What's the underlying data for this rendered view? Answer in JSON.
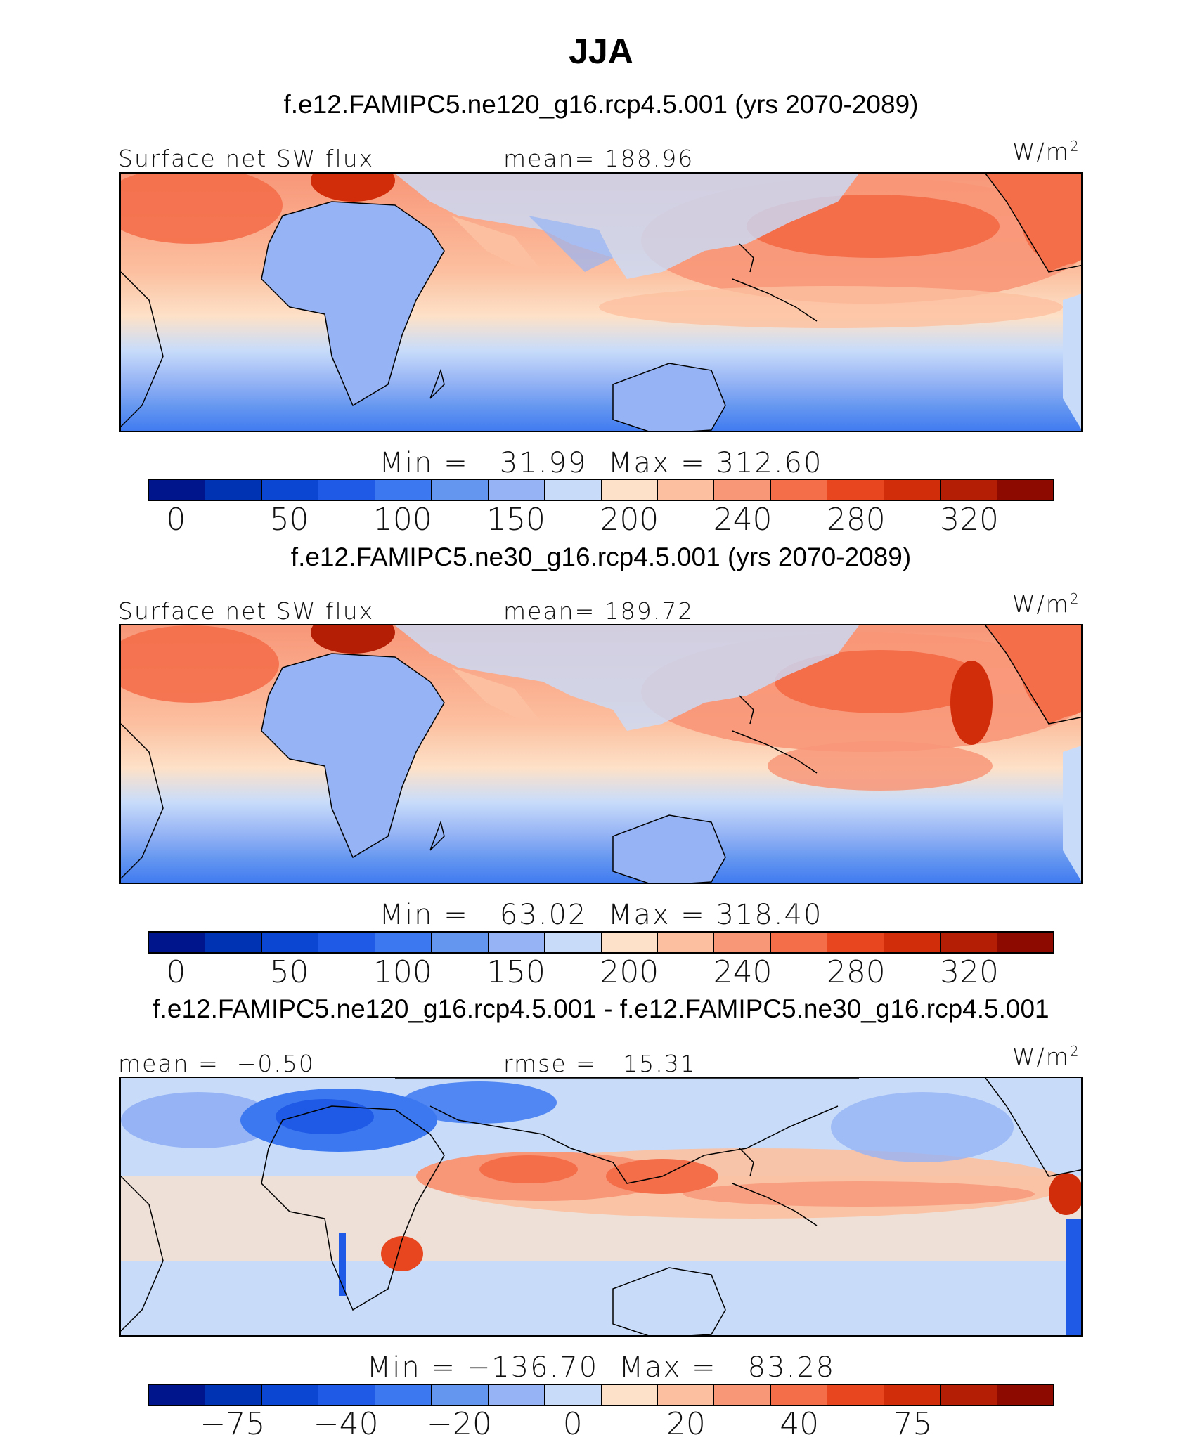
{
  "season": "JJA",
  "panels": [
    {
      "title": "f.e12.FAMIPC5.ne120_g16.rcp4.5.001 (yrs 2070-2089)",
      "left_label": "Surface net SW flux",
      "center_label": "mean= 188.96",
      "units": "W/m",
      "units_sup": "2",
      "minmax": "Min =   31.99  Max = 312.60",
      "colorbar": {
        "colors": [
          "#00148c",
          "#0032b4",
          "#0a46d2",
          "#1e5ae6",
          "#3c78f0",
          "#6496f0",
          "#96b4f5",
          "#c8dcfa",
          "#fde1c8",
          "#fcc0a0",
          "#f89678",
          "#f46e4a",
          "#e8461e",
          "#d22d0a",
          "#b41e05",
          "#8c0a00"
        ],
        "ticks": [
          "0",
          "50",
          "100",
          "150",
          "200",
          "240",
          "280",
          "320"
        ],
        "bounds": [
          -25,
          375
        ]
      }
    },
    {
      "title": "f.e12.FAMIPC5.ne30_g16.rcp4.5.001 (yrs 2070-2089)",
      "left_label": "Surface net SW flux",
      "center_label": "mean= 189.72",
      "units": "W/m",
      "units_sup": "2",
      "minmax": "Min =   63.02  Max = 318.40",
      "colorbar": {
        "colors": [
          "#00148c",
          "#0032b4",
          "#0a46d2",
          "#1e5ae6",
          "#3c78f0",
          "#6496f0",
          "#96b4f5",
          "#c8dcfa",
          "#fde1c8",
          "#fcc0a0",
          "#f89678",
          "#f46e4a",
          "#e8461e",
          "#d22d0a",
          "#b41e05",
          "#8c0a00"
        ],
        "ticks": [
          "0",
          "50",
          "100",
          "150",
          "200",
          "240",
          "280",
          "320"
        ],
        "bounds": [
          -25,
          375
        ]
      }
    },
    {
      "title": "f.e12.FAMIPC5.ne120_g16.rcp4.5.001 - f.e12.FAMIPC5.ne30_g16.rcp4.5.001",
      "left_label": "mean =  −0.50",
      "center_label": "rmse =   15.31",
      "units": "W/m",
      "units_sup": "2",
      "minmax": "Min = −136.70  Max =   83.28",
      "colorbar": {
        "colors": [
          "#00148c",
          "#0032b4",
          "#0a46d2",
          "#1e5ae6",
          "#3c78f0",
          "#6496f0",
          "#96b4f5",
          "#c8dcfa",
          "#fde1c8",
          "#fcc0a0",
          "#f89678",
          "#f46e4a",
          "#e8461e",
          "#d22d0a",
          "#b41e05",
          "#8c0a00"
        ],
        "ticks": [
          "−75",
          "−40",
          "−20",
          "0",
          "20",
          "40",
          "75"
        ],
        "bounds": null
      }
    }
  ]
}
